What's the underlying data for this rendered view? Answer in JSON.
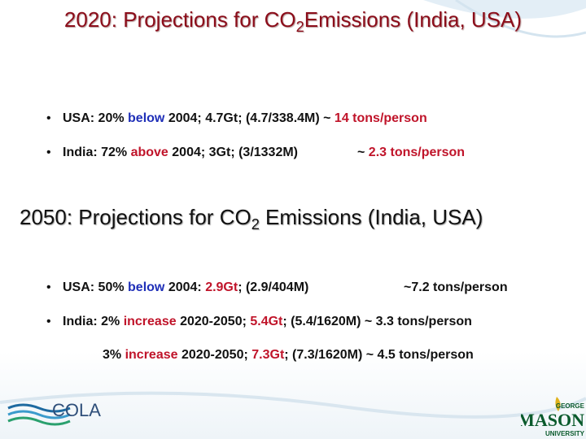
{
  "slide": {
    "title1": [
      {
        "text": "2020: Projections for CO"
      },
      {
        "text": "2",
        "sub": true
      },
      {
        "text": "Emissions (India, USA)"
      }
    ],
    "bullets1": [
      {
        "main": [
          {
            "text": "USA: 20% "
          },
          {
            "text": "below",
            "color": "#1f2fb8"
          },
          {
            "text": " 2004; 4.7Gt; (4.7/338.4M) ~ "
          },
          {
            "text": "14 tons/person",
            "color": "#c0142a"
          }
        ],
        "tail": []
      },
      {
        "main": [
          {
            "text": "India: 72% "
          },
          {
            "text": "above",
            "color": "#c0142a"
          },
          {
            "text": " 2004; 3Gt; (3/1332M)"
          }
        ],
        "tail": [
          {
            "text": "~ "
          },
          {
            "text": "2.3 tons/person",
            "color": "#c0142a"
          }
        ]
      }
    ],
    "title2": [
      {
        "text": "2050: Projections for CO"
      },
      {
        "text": "2",
        "sub": true
      },
      {
        "text": " Emissions (India, USA)"
      }
    ],
    "bullets2": [
      {
        "main": [
          {
            "text": "USA: 50% "
          },
          {
            "text": "below",
            "color": "#1f2fb8"
          },
          {
            "text": " 2004: "
          },
          {
            "text": "2.9Gt",
            "color": "#c0142a"
          },
          {
            "text": "; (2.9/404M)"
          }
        ],
        "tail": [
          {
            "text": "~7.2 tons/person"
          }
        ]
      },
      {
        "main": [
          {
            "text": "India: 2% "
          },
          {
            "text": "increase",
            "color": "#c0142a"
          },
          {
            "text": " 2020-2050; "
          },
          {
            "text": "5.4Gt",
            "color": "#c0142a"
          },
          {
            "text": "; (5.4/1620M) ~ 3.3 tons/person"
          }
        ],
        "tail": []
      }
    ],
    "note": [
      {
        "text": "3% "
      },
      {
        "text": "increase",
        "color": "#c0142a"
      },
      {
        "text": " 2020-2050; "
      },
      {
        "text": "7.3Gt",
        "color": "#c0142a"
      },
      {
        "text": "; (7.3/1620M)  ~ 4.5 tons/person"
      }
    ],
    "logo_left": "COLA",
    "logo_right": [
      "GEORGE",
      "MASON",
      "UNIVERSITY"
    ]
  }
}
